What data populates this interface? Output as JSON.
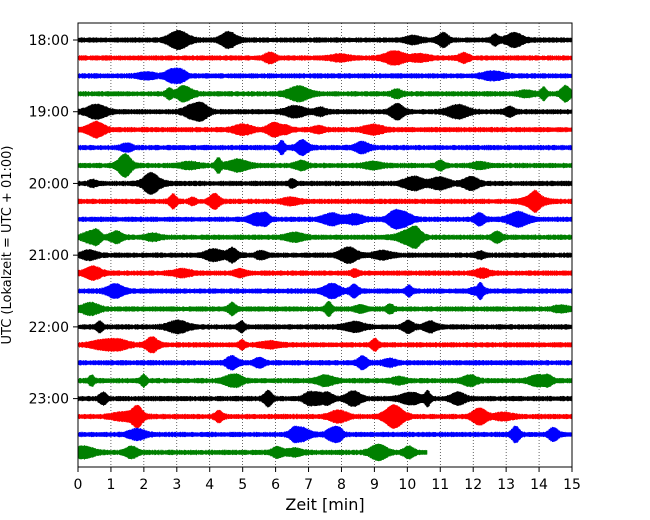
{
  "chart_data": {
    "type": "line",
    "title": "",
    "xlabel": "Zeit  [min]",
    "ylabel": "UTC (Lokalzeit = UTC + 01:00)",
    "xlim": [
      0,
      15
    ],
    "x_ticks": [
      "0",
      "1",
      "2",
      "3",
      "4",
      "5",
      "6",
      "7",
      "8",
      "9",
      "10",
      "11",
      "12",
      "13",
      "14",
      "15"
    ],
    "y_tick_labels": [
      "18:00",
      "19:00",
      "20:00",
      "21:00",
      "22:00",
      "23:00"
    ],
    "grid": "vertical-dotted",
    "trace_colors": [
      "#000000",
      "#ff0000",
      "#0000ff",
      "#008000"
    ],
    "trace_interval_min": 15,
    "traces": [
      {
        "start": "18:00",
        "end_min": 15
      },
      {
        "start": "18:15",
        "end_min": 15
      },
      {
        "start": "18:30",
        "end_min": 15
      },
      {
        "start": "18:45",
        "end_min": 15
      },
      {
        "start": "19:00",
        "end_min": 15
      },
      {
        "start": "19:15",
        "end_min": 15
      },
      {
        "start": "19:30",
        "end_min": 15
      },
      {
        "start": "19:45",
        "end_min": 15
      },
      {
        "start": "20:00",
        "end_min": 15
      },
      {
        "start": "20:15",
        "end_min": 15
      },
      {
        "start": "20:30",
        "end_min": 15
      },
      {
        "start": "20:45",
        "end_min": 15
      },
      {
        "start": "21:00",
        "end_min": 15
      },
      {
        "start": "21:15",
        "end_min": 15
      },
      {
        "start": "21:30",
        "end_min": 15
      },
      {
        "start": "21:45",
        "end_min": 15
      },
      {
        "start": "22:00",
        "end_min": 15
      },
      {
        "start": "22:15",
        "end_min": 15
      },
      {
        "start": "22:30",
        "end_min": 15
      },
      {
        "start": "22:45",
        "end_min": 15
      },
      {
        "start": "23:00",
        "end_min": 15
      },
      {
        "start": "23:15",
        "end_min": 15
      },
      {
        "start": "23:30",
        "end_min": 15
      },
      {
        "start": "23:45",
        "end_min": 10.6
      }
    ]
  }
}
